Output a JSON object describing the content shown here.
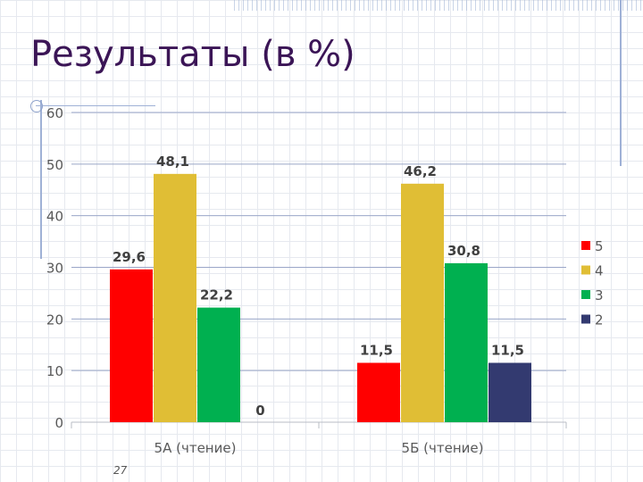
{
  "slide": {
    "title": "Результаты (в %)",
    "page_number": "27"
  },
  "chart_data": {
    "type": "bar",
    "categories": [
      "5А (чтение)",
      "5Б (чтение)"
    ],
    "series": [
      {
        "name": "5",
        "values": [
          29.6,
          11.5
        ],
        "labels": [
          "29,6",
          "11,5"
        ],
        "color": "#ff0000"
      },
      {
        "name": "4",
        "values": [
          48.1,
          46.2
        ],
        "labels": [
          "48,1",
          "46,2"
        ],
        "color": "#e0be35"
      },
      {
        "name": "3",
        "values": [
          22.2,
          30.8
        ],
        "labels": [
          "22,2",
          "30,8"
        ],
        "color": "#00b050"
      },
      {
        "name": "2",
        "values": [
          0,
          11.5
        ],
        "labels": [
          "0",
          "11,5"
        ],
        "color": "#333a70"
      }
    ],
    "ylim": [
      0,
      60
    ],
    "yticks": [
      "0",
      "10",
      "20",
      "30",
      "40",
      "50",
      "60"
    ],
    "legend_position": "right",
    "grid": true
  }
}
